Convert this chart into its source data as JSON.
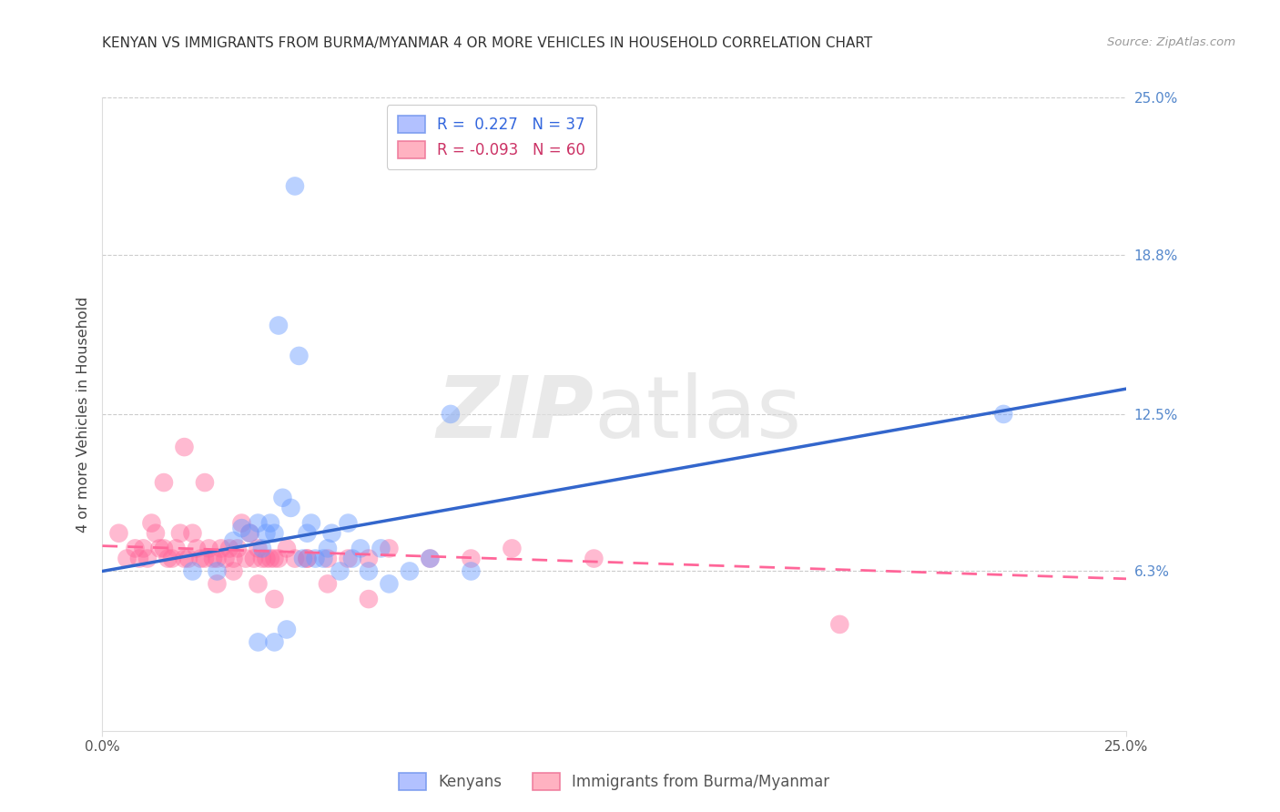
{
  "title": "KENYAN VS IMMIGRANTS FROM BURMA/MYANMAR 4 OR MORE VEHICLES IN HOUSEHOLD CORRELATION CHART",
  "source": "Source: ZipAtlas.com",
  "ylabel": "4 or more Vehicles in Household",
  "x_min": 0.0,
  "x_max": 0.25,
  "y_min": 0.0,
  "y_max": 0.25,
  "y_tick_vals_right": [
    0.25,
    0.188,
    0.125,
    0.063
  ],
  "y_tick_labels_right": [
    "25.0%",
    "18.8%",
    "12.5%",
    "6.3%"
  ],
  "legend_entries": [
    {
      "label": "R =  0.227   N = 37",
      "color": "#6699ff"
    },
    {
      "label": "R = -0.093   N = 60",
      "color": "#ff6699"
    }
  ],
  "legend_labels_bottom": [
    "Kenyans",
    "Immigrants from Burma/Myanmar"
  ],
  "kenyan_color": "#6699ff",
  "burma_color": "#ff6699",
  "kenyan_line_color": "#3366cc",
  "burma_line_color": "#ff6699",
  "background_color": "#ffffff",
  "grid_color": "#cccccc",
  "kenyan_scatter_x": [
    0.022,
    0.028,
    0.032,
    0.034,
    0.036,
    0.038,
    0.039,
    0.04,
    0.041,
    0.042,
    0.043,
    0.044,
    0.046,
    0.047,
    0.048,
    0.049,
    0.05,
    0.051,
    0.052,
    0.054,
    0.055,
    0.056,
    0.058,
    0.06,
    0.061,
    0.063,
    0.065,
    0.068,
    0.07,
    0.075,
    0.08,
    0.085,
    0.09,
    0.22,
    0.038,
    0.042,
    0.045
  ],
  "kenyan_scatter_y": [
    0.063,
    0.063,
    0.075,
    0.08,
    0.078,
    0.082,
    0.072,
    0.078,
    0.082,
    0.078,
    0.16,
    0.092,
    0.088,
    0.215,
    0.148,
    0.068,
    0.078,
    0.082,
    0.068,
    0.068,
    0.072,
    0.078,
    0.063,
    0.082,
    0.068,
    0.072,
    0.063,
    0.072,
    0.058,
    0.063,
    0.068,
    0.125,
    0.063,
    0.125,
    0.035,
    0.035,
    0.04
  ],
  "burma_scatter_x": [
    0.004,
    0.006,
    0.008,
    0.009,
    0.01,
    0.011,
    0.012,
    0.013,
    0.014,
    0.015,
    0.016,
    0.017,
    0.018,
    0.019,
    0.02,
    0.021,
    0.022,
    0.023,
    0.024,
    0.025,
    0.026,
    0.027,
    0.028,
    0.029,
    0.03,
    0.031,
    0.032,
    0.033,
    0.034,
    0.035,
    0.036,
    0.037,
    0.038,
    0.039,
    0.04,
    0.041,
    0.042,
    0.043,
    0.045,
    0.047,
    0.05,
    0.055,
    0.06,
    0.065,
    0.07,
    0.08,
    0.09,
    0.1,
    0.12,
    0.18,
    0.015,
    0.02,
    0.025,
    0.028,
    0.032,
    0.038,
    0.042,
    0.05,
    0.055,
    0.065
  ],
  "burma_scatter_y": [
    0.078,
    0.068,
    0.072,
    0.068,
    0.072,
    0.068,
    0.082,
    0.078,
    0.072,
    0.072,
    0.068,
    0.068,
    0.072,
    0.078,
    0.068,
    0.068,
    0.078,
    0.072,
    0.068,
    0.068,
    0.072,
    0.068,
    0.068,
    0.072,
    0.068,
    0.072,
    0.068,
    0.072,
    0.082,
    0.068,
    0.078,
    0.068,
    0.072,
    0.068,
    0.068,
    0.068,
    0.068,
    0.068,
    0.072,
    0.068,
    0.068,
    0.068,
    0.068,
    0.068,
    0.072,
    0.068,
    0.068,
    0.072,
    0.068,
    0.042,
    0.098,
    0.112,
    0.098,
    0.058,
    0.063,
    0.058,
    0.052,
    0.068,
    0.058,
    0.052
  ],
  "kenyan_line_y_start": 0.063,
  "kenyan_line_y_end": 0.135,
  "burma_line_y_start": 0.073,
  "burma_line_y_end": 0.06
}
